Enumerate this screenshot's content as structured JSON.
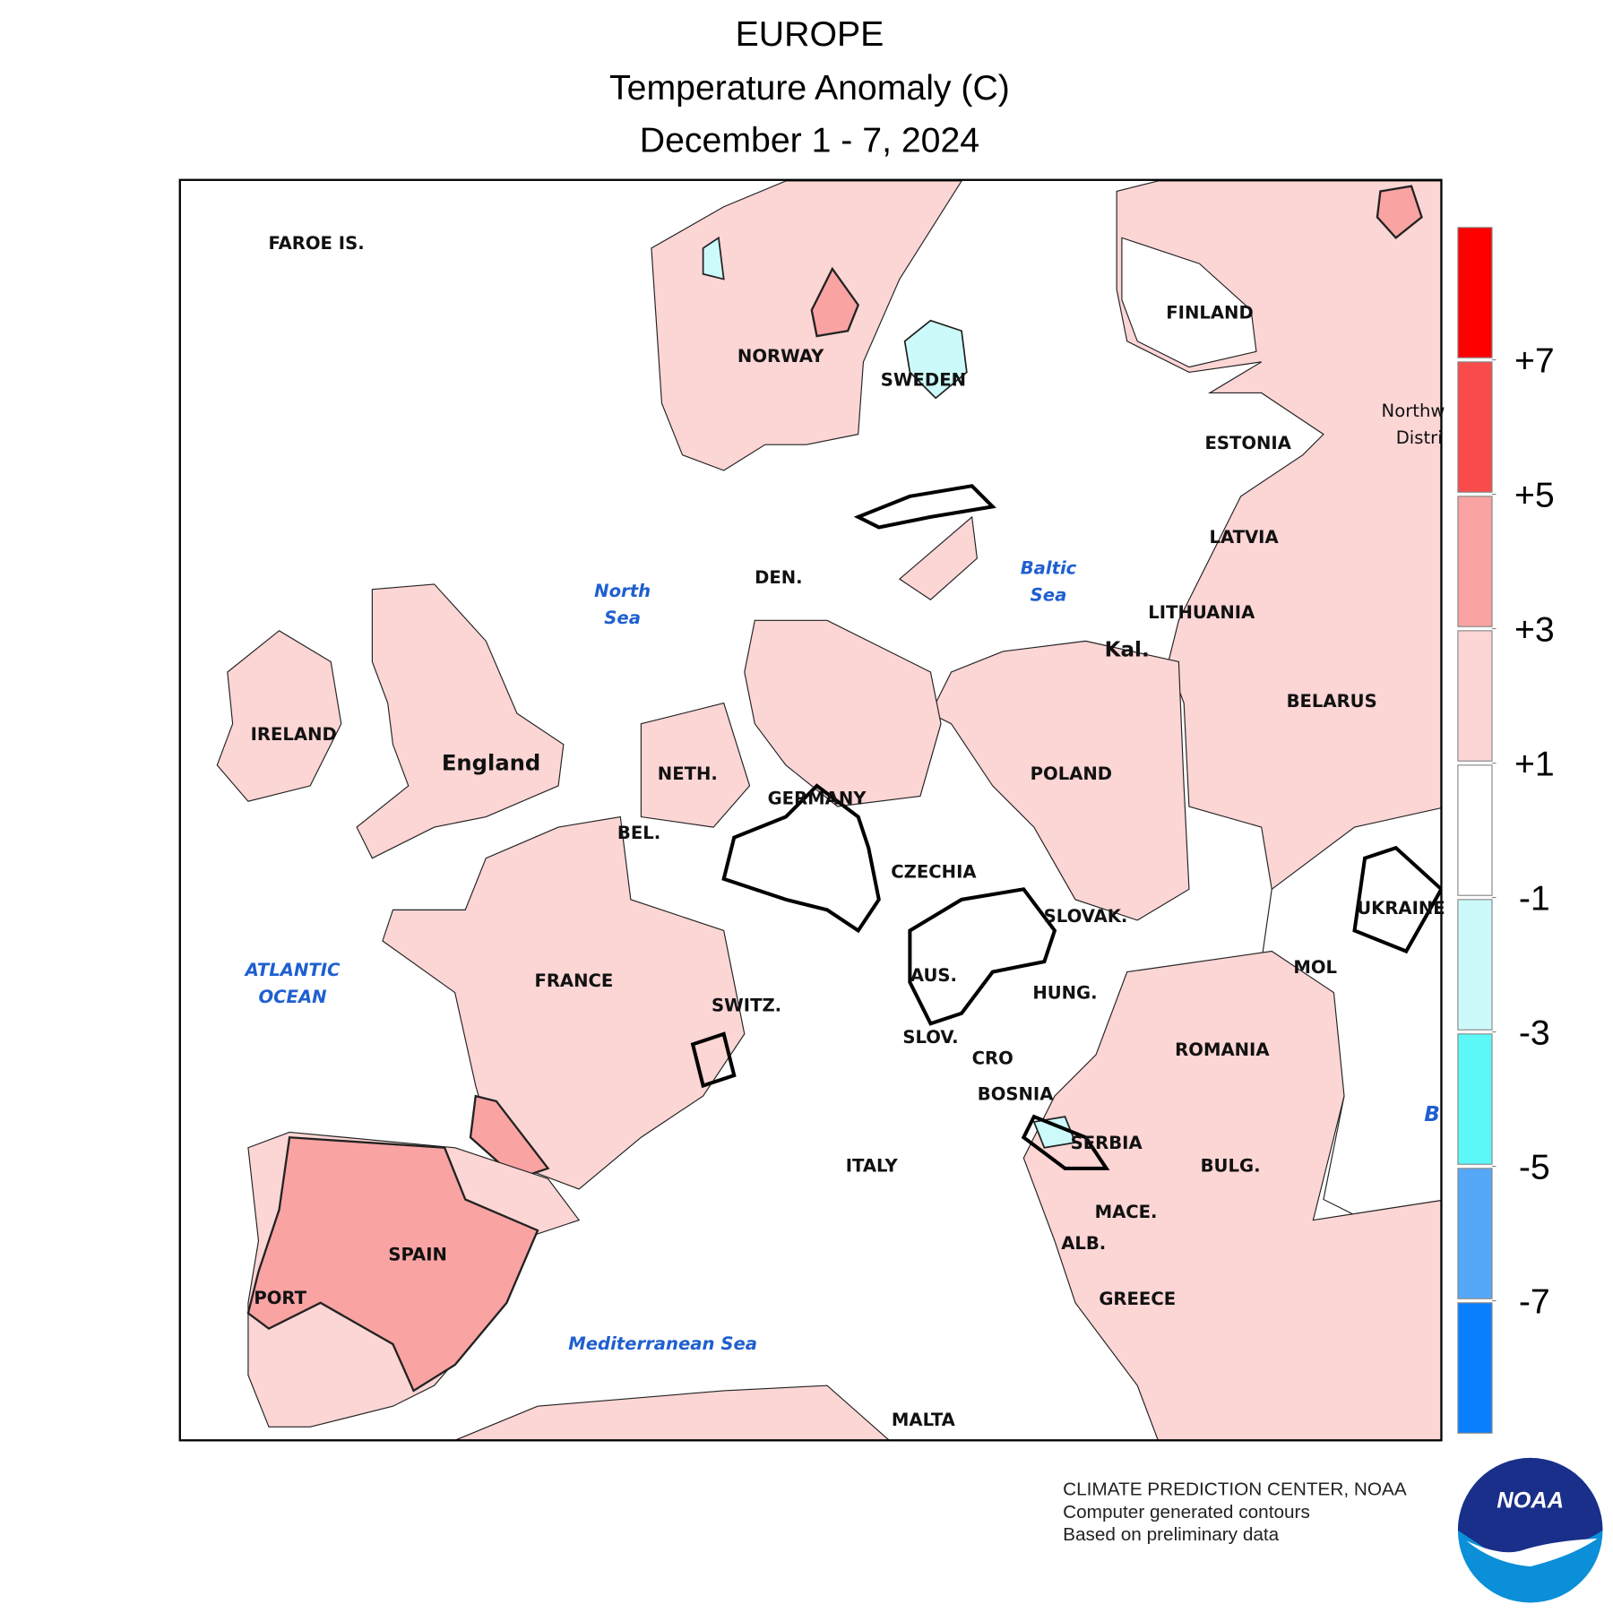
{
  "title": "EUROPE",
  "subtitle": "Temperature Anomaly (C)",
  "date": "December 1 - 7, 2024",
  "countries": [
    "FAROE IS.",
    "NORWAY",
    "SWEDEN",
    "FINLAND",
    "ESTONIA",
    "LATVIA",
    "LITHUANIA",
    "Kal.",
    "BELARUS",
    "POLAND",
    "DEN.",
    "NETH.",
    "BEL.",
    "GERMANY",
    "CZECHIA",
    "SLOVAK.",
    "UKRAINE",
    "MOL",
    "AUS.",
    "HUNG.",
    "SWITZ.",
    "SLOV.",
    "CRO",
    "ROMANIA",
    "BOSNIA",
    "SERBIA",
    "BULG.",
    "ITALY",
    "MACE.",
    "ALB.",
    "GREECE",
    "MALTA",
    "SPAIN",
    "PORT",
    "FRANCE",
    "IRELAND",
    "England",
    "Northw",
    "Distri",
    "B"
  ],
  "seas": [
    "North",
    "Sea",
    "Baltic",
    "Sea",
    "ATLANTIC",
    "OCEAN",
    "Mediterranean Sea"
  ],
  "legend": {
    "colors": [
      "#ff0000",
      "#f94b4b",
      "#f9a3a3",
      "#fcd5d5",
      "#ffffff",
      "#ccfafa",
      "#5cf7f7",
      "#55a8f8",
      "#0a7ffd"
    ],
    "ticks": [
      {
        "value": 7,
        "label": "+7"
      },
      {
        "value": 5,
        "label": "+5"
      },
      {
        "value": 3,
        "label": "+3"
      },
      {
        "value": 1,
        "label": "+1"
      },
      {
        "value": -1,
        "label": "-1"
      },
      {
        "value": -3,
        "label": "-3"
      },
      {
        "value": -5,
        "label": "-5"
      },
      {
        "value": -7,
        "label": "-7"
      }
    ]
  },
  "credit": [
    "CLIMATE PREDICTION CENTER, NOAA",
    "Computer generated contours",
    "Based on preliminary data"
  ],
  "logo_text": "NOAA"
}
